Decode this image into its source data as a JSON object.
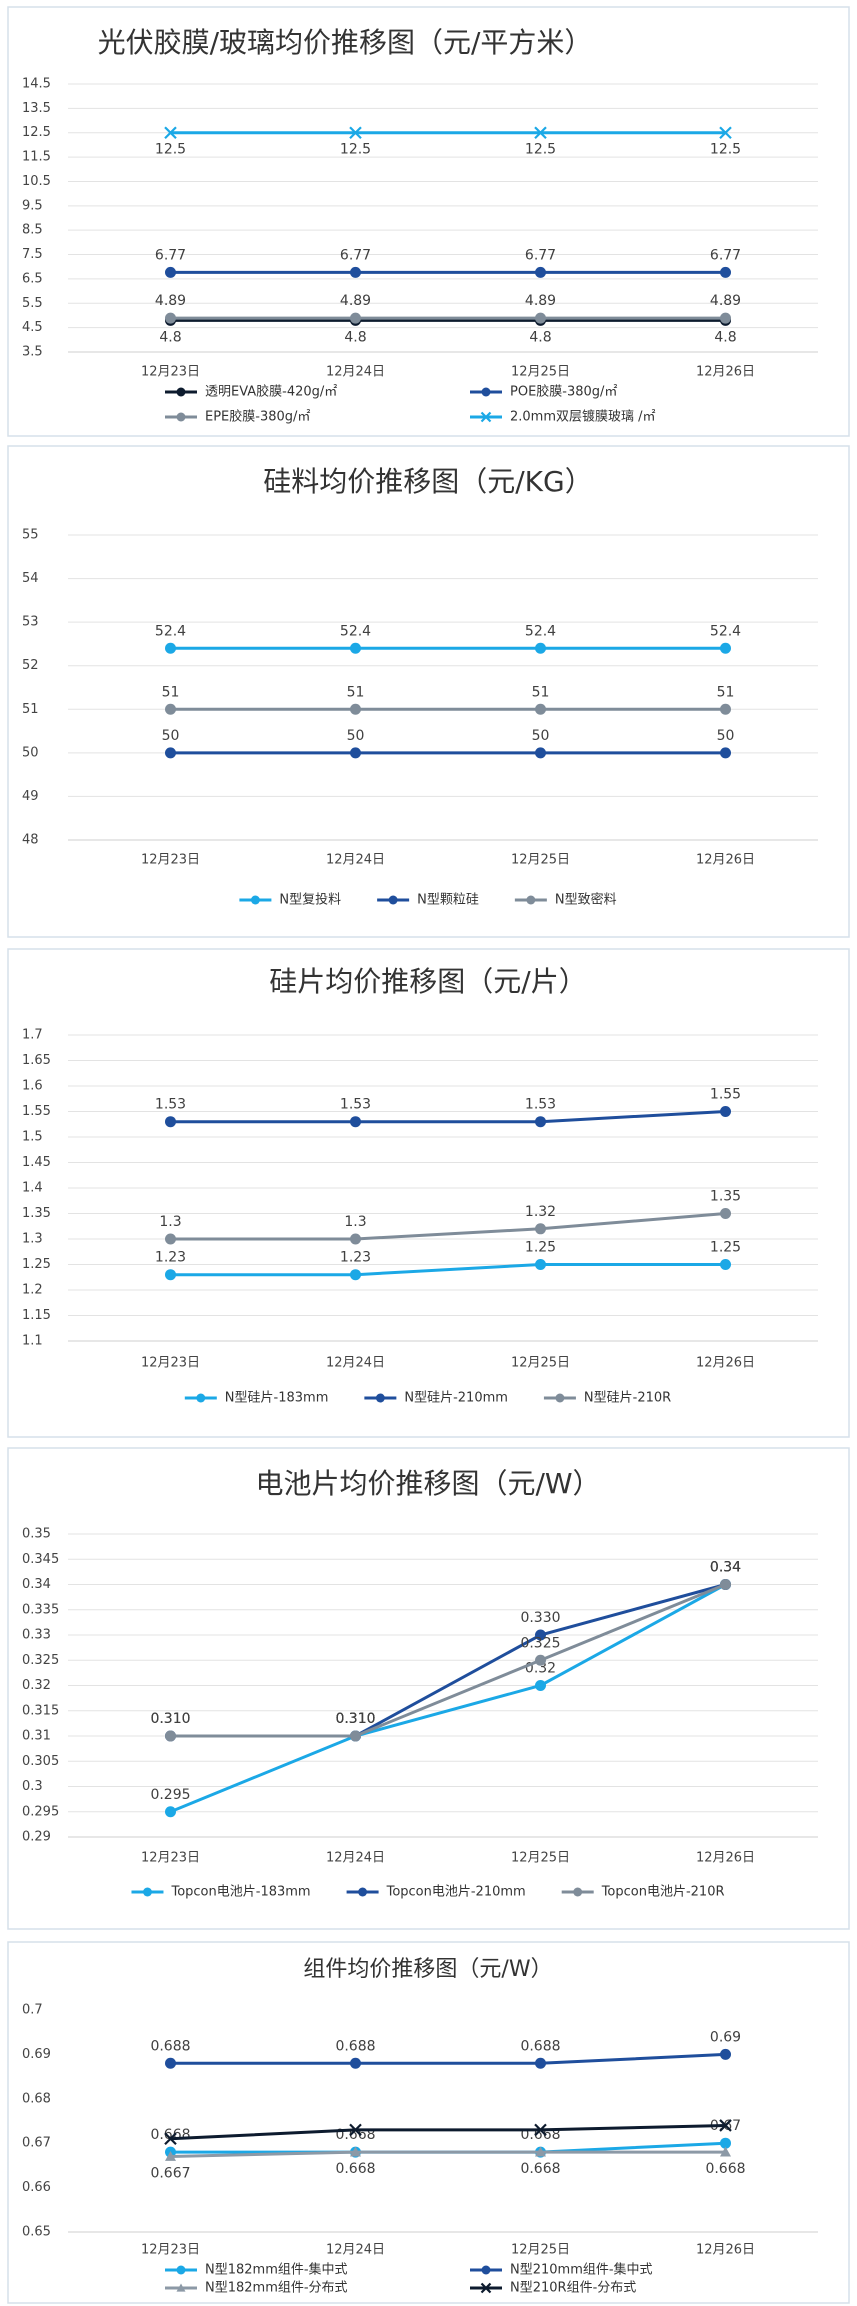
{
  "chart_data": [
    {
      "type": "line",
      "title": "光伏胶膜/玻璃均价推移图（元/平方米）",
      "categories": [
        "12月23日",
        "12月24日",
        "12月25日",
        "12月26日"
      ],
      "ylim": [
        3.5,
        14.5
      ],
      "yticks": [
        3.5,
        4.5,
        5.5,
        6.5,
        7.5,
        8.5,
        9.5,
        10.5,
        11.5,
        12.5,
        13.5,
        14.5
      ],
      "grid": true,
      "series": [
        {
          "name": "透明EVA胶膜-420g/㎡",
          "color": "#0d1b2e",
          "marker": "circle",
          "label_position": "below",
          "values": [
            4.8,
            4.8,
            4.8,
            4.8
          ]
        },
        {
          "name": "POE胶膜-380g/㎡",
          "color": "#1f4e9c",
          "marker": "circle",
          "label_position": "above",
          "values": [
            6.77,
            6.77,
            6.77,
            6.77
          ]
        },
        {
          "name": "EPE胶膜-380g/㎡",
          "color": "#7f8c99",
          "marker": "circle",
          "label_position": "above",
          "values": [
            4.89,
            4.89,
            4.89,
            4.89
          ]
        },
        {
          "name": "2.0mm双层镀膜玻璃 /㎡",
          "color": "#1ba8e6",
          "marker": "x",
          "label_position": "below",
          "values": [
            12.5,
            12.5,
            12.5,
            12.5
          ]
        }
      ]
    },
    {
      "type": "line",
      "title": "硅料均价推移图（元/KG）",
      "categories": [
        "12月23日",
        "12月24日",
        "12月25日",
        "12月26日"
      ],
      "ylim": [
        48,
        55
      ],
      "yticks": [
        48,
        49,
        50,
        51,
        52,
        53,
        54,
        55
      ],
      "grid": true,
      "series": [
        {
          "name": "N型复投料",
          "color": "#1ba8e6",
          "marker": "circle",
          "label_position": "above",
          "values": [
            52.4,
            52.4,
            52.4,
            52.4
          ]
        },
        {
          "name": "N型颗粒硅",
          "color": "#1f4e9c",
          "marker": "circle",
          "label_position": "above",
          "values": [
            50,
            50,
            50,
            50
          ]
        },
        {
          "name": "N型致密料",
          "color": "#7f8c99",
          "marker": "circle",
          "label_position": "above",
          "values": [
            51,
            51,
            51,
            51
          ]
        }
      ]
    },
    {
      "type": "line",
      "title": "硅片均价推移图（元/片）",
      "categories": [
        "12月23日",
        "12月24日",
        "12月25日",
        "12月26日"
      ],
      "ylim": [
        1.1,
        1.7
      ],
      "yticks": [
        1.1,
        1.15,
        1.2,
        1.25,
        1.3,
        1.35,
        1.4,
        1.45,
        1.5,
        1.55,
        1.6,
        1.65,
        1.7
      ],
      "grid": true,
      "series": [
        {
          "name": "N型硅片-183mm",
          "color": "#1ba8e6",
          "marker": "circle",
          "label_position": "above",
          "values": [
            1.23,
            1.23,
            1.25,
            1.25
          ]
        },
        {
          "name": "N型硅片-210mm",
          "color": "#1f4e9c",
          "marker": "circle",
          "label_position": "above",
          "values": [
            1.53,
            1.53,
            1.53,
            1.55
          ]
        },
        {
          "name": "N型硅片-210R",
          "color": "#7f8c99",
          "marker": "circle",
          "label_position": "above",
          "values": [
            1.3,
            1.3,
            1.32,
            1.35
          ]
        }
      ]
    },
    {
      "type": "line",
      "title": "电池片均价推移图（元/W）",
      "categories": [
        "12月23日",
        "12月24日",
        "12月25日",
        "12月26日"
      ],
      "ylim": [
        0.29,
        0.35
      ],
      "yticks": [
        0.29,
        0.295,
        0.3,
        0.305,
        0.31,
        0.315,
        0.32,
        0.325,
        0.33,
        0.335,
        0.34,
        0.345,
        0.35
      ],
      "grid": true,
      "series": [
        {
          "name": "Topcon电池片-183mm",
          "color": "#1ba8e6",
          "marker": "circle",
          "label_position": "above",
          "values": [
            0.295,
            0.31,
            0.32,
            0.34
          ],
          "value_labels": [
            "0.295",
            "0.310",
            "0.32",
            "0.34"
          ]
        },
        {
          "name": "Topcon电池片-210mm",
          "color": "#1f4e9c",
          "marker": "circle",
          "label_position": "above",
          "values": [
            0.31,
            0.31,
            0.33,
            0.34
          ],
          "value_labels": [
            "0.310",
            "0.310",
            "0.330",
            "0.34"
          ]
        },
        {
          "name": "Topcon电池片-210R",
          "color": "#7f8c99",
          "marker": "circle",
          "label_position": "above",
          "values": [
            0.31,
            0.31,
            0.325,
            0.34
          ],
          "value_labels": [
            "0.310",
            "0.310",
            "0.325",
            "0.34"
          ]
        }
      ]
    },
    {
      "type": "line",
      "title": "组件均价推移图（元/W）",
      "categories": [
        "12月23日",
        "12月24日",
        "12月25日",
        "12月26日"
      ],
      "ylim": [
        0.65,
        0.7
      ],
      "yticks": [
        0.65,
        0.66,
        0.67,
        0.68,
        0.69,
        0.7
      ],
      "grid": false,
      "series": [
        {
          "name": "N型182mm组件-集中式",
          "color": "#1ba8e6",
          "marker": "circle",
          "label_position": "above",
          "values": [
            0.668,
            0.668,
            0.668,
            0.67
          ]
        },
        {
          "name": "N型210mm组件-集中式",
          "color": "#1f4e9c",
          "marker": "circle",
          "label_position": "above",
          "values": [
            0.688,
            0.688,
            0.688,
            0.69
          ]
        },
        {
          "name": "N型182mm组件-分布式",
          "color": "#8c99a6",
          "marker": "triangle",
          "label_position": "below",
          "values": [
            0.667,
            0.668,
            0.668,
            0.668
          ]
        },
        {
          "name": "N型210R组件-分布式",
          "color": "#0d1b2e",
          "marker": "x",
          "values": [
            0.671,
            0.673,
            0.673,
            0.674
          ]
        }
      ]
    }
  ]
}
